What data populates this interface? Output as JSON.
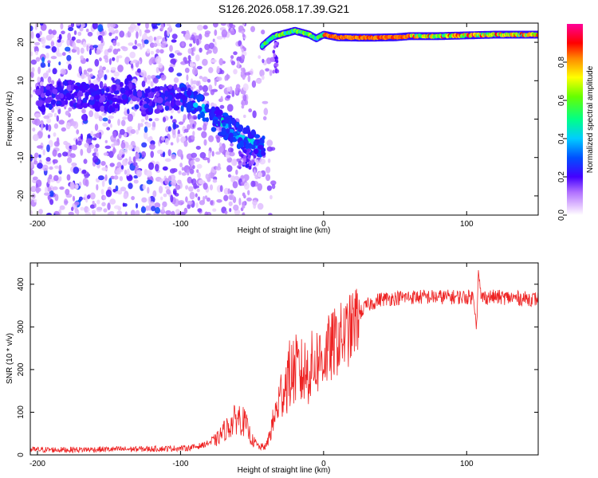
{
  "title": "S126.2026.058.17.39.G21",
  "chart_data": [
    {
      "type": "heatmap",
      "name": "spectrogram",
      "xlabel": "Height of straight line (km)",
      "ylabel": "Frequency (Hz)",
      "xlim": [
        -205,
        150
      ],
      "ylim": [
        -25,
        25
      ],
      "xticks": [
        -200,
        -100,
        0,
        100
      ],
      "yticks": [
        -20,
        -10,
        0,
        10,
        20
      ],
      "ridge": {
        "x": [
          -197,
          -180,
          -165,
          -155,
          -145,
          -135,
          -130,
          -115,
          -100,
          -90,
          -80,
          -70,
          -60,
          -50,
          -45
        ],
        "y": [
          5,
          7,
          6,
          5,
          5.5,
          8,
          4,
          5,
          6,
          4,
          1,
          -1.5,
          -4,
          -6,
          -7
        ]
      },
      "carrier": {
        "x": [
          -43,
          -40,
          -35,
          -30,
          -25,
          -20,
          -15,
          -10,
          -5,
          0,
          10,
          30,
          50,
          60,
          80,
          100,
          120,
          150
        ],
        "y": [
          19,
          20,
          21.5,
          22,
          22.5,
          23,
          22.5,
          22,
          21,
          22,
          21.3,
          21.2,
          21.3,
          21.6,
          21.6,
          21.8,
          22,
          22
        ]
      },
      "colorbar": {
        "label": "Normalized spectral amplitude",
        "range": [
          0,
          1
        ],
        "ticks": [
          0.0,
          0.2,
          0.4,
          0.6,
          0.8
        ],
        "tick_labels": [
          "0.0",
          "0.2",
          "0.4",
          "0.6",
          "0.8"
        ]
      }
    },
    {
      "type": "line",
      "name": "snr",
      "xlabel": "Height of straight line (km)",
      "ylabel": "SNR (10 * v/v)",
      "xlim": [
        -205,
        150
      ],
      "ylim": [
        0,
        450
      ],
      "xticks": [
        -200,
        -100,
        0,
        100
      ],
      "yticks": [
        0,
        100,
        200,
        300,
        400
      ],
      "color": "#ee2222",
      "series": [
        {
          "name": "SNR",
          "x": [
            -205,
            -180,
            -150,
            -120,
            -95,
            -85,
            -75,
            -70,
            -65,
            -60,
            -55,
            -50,
            -45,
            -40,
            -35,
            -30,
            -25,
            -20,
            -15,
            -10,
            -5,
            0,
            5,
            10,
            15,
            20,
            25,
            30,
            40,
            60,
            80,
            100,
            105,
            107,
            108,
            110,
            120,
            150
          ],
          "y": [
            12,
            12,
            13,
            14,
            16,
            22,
            35,
            55,
            70,
            90,
            75,
            35,
            18,
            20,
            80,
            140,
            180,
            200,
            190,
            200,
            220,
            230,
            250,
            270,
            280,
            300,
            330,
            350,
            365,
            370,
            370,
            370,
            370,
            300,
            430,
            370,
            370,
            365
          ]
        }
      ]
    }
  ]
}
